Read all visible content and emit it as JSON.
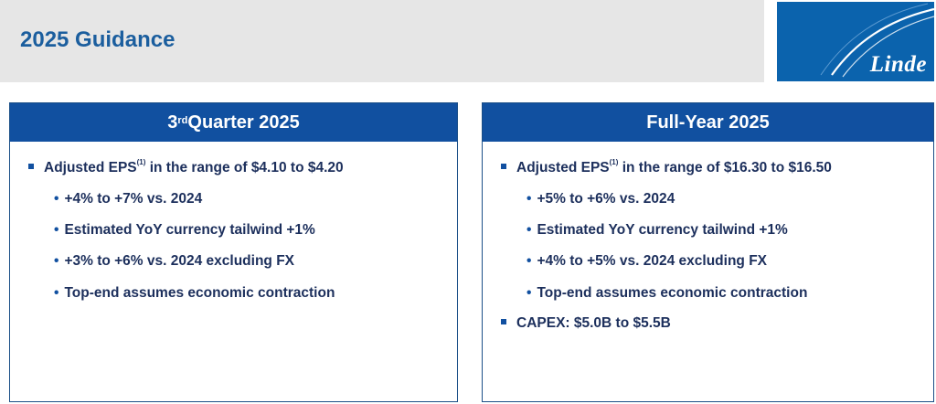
{
  "header": {
    "title": "2025 Guidance"
  },
  "logo": {
    "text": "Linde"
  },
  "quarter": {
    "title_main": "3",
    "title_sup": "rd",
    "title_rest": " Quarter 2025",
    "eps": {
      "label": "Adjusted EPS",
      "footnote": "(1)",
      "text": " in the range of $4.10 to $4.20"
    },
    "sub_items": [
      "+4% to +7% vs. 2024",
      "Estimated YoY currency tailwind +1%",
      "+3% to +6% vs. 2024 excluding FX",
      "Top-end assumes economic contraction"
    ]
  },
  "full_year": {
    "title": "Full-Year 2025",
    "eps": {
      "label": "Adjusted EPS",
      "footnote": "(1)",
      "text": " in the range of $16.30 to $16.50"
    },
    "sub_items": [
      "+5% to +6% vs. 2024",
      "Estimated YoY currency tailwind +1%",
      "+4% to +5% vs. 2024 excluding FX",
      "Top-end assumes economic contraction"
    ],
    "capex": "CAPEX:  $5.0B to $5.5B"
  }
}
